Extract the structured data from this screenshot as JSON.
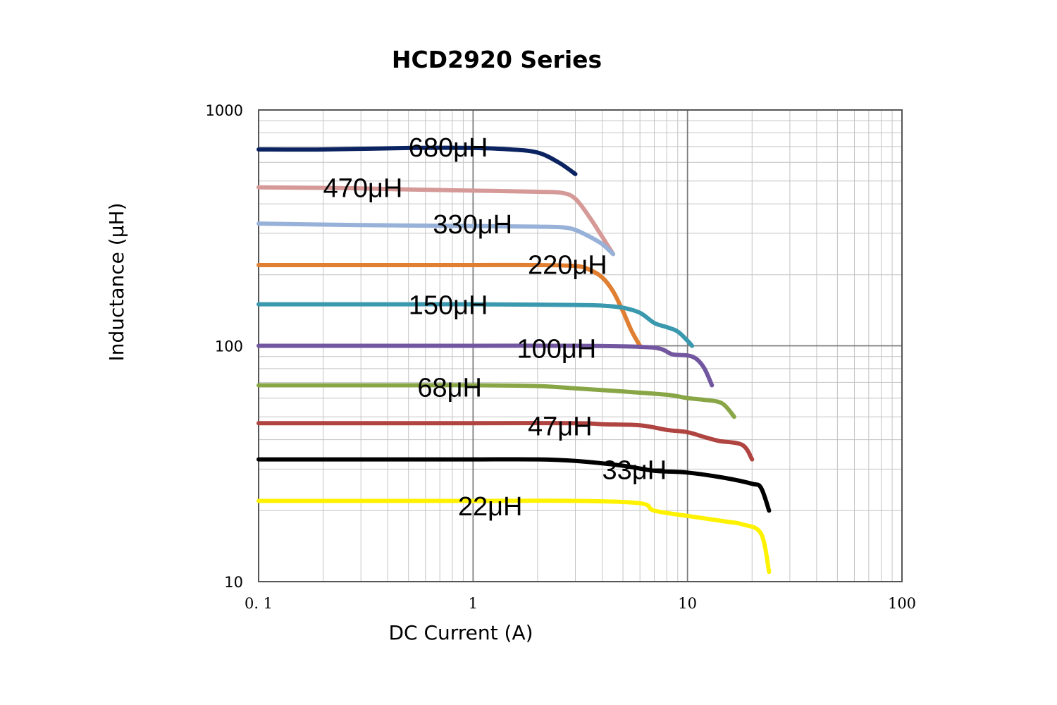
{
  "chart_data": {
    "type": "line",
    "title": "HCD2920 Series",
    "xlabel": "DC Current (A)",
    "ylabel": "Inductance (μH)",
    "xscale": "log",
    "yscale": "log",
    "xlim": [
      0.1,
      100
    ],
    "ylim": [
      10,
      1000
    ],
    "xticks": [
      {
        "value": 0.1,
        "label": "0. 1"
      },
      {
        "value": 1,
        "label": "1"
      },
      {
        "value": 10,
        "label": "10"
      },
      {
        "value": 100,
        "label": "100"
      }
    ],
    "yticks": [
      {
        "value": 10,
        "label": "10"
      },
      {
        "value": 100,
        "label": "100"
      },
      {
        "value": 1000,
        "label": "1000"
      }
    ],
    "grid": true,
    "series": [
      {
        "name": "680μH",
        "label": "680μH",
        "color": "#0b2461",
        "label_at": [
          0.5,
          700
        ],
        "points": [
          [
            0.1,
            680
          ],
          [
            0.2,
            680
          ],
          [
            0.5,
            690
          ],
          [
            1.0,
            690
          ],
          [
            1.5,
            680
          ],
          [
            2.0,
            660
          ],
          [
            2.5,
            600
          ],
          [
            3.0,
            535
          ]
        ]
      },
      {
        "name": "470μH",
        "label": "470μH",
        "color": "#d59a98",
        "label_at": [
          0.2,
          470
        ],
        "points": [
          [
            0.1,
            470
          ],
          [
            0.3,
            465
          ],
          [
            0.5,
            460
          ],
          [
            1.0,
            455
          ],
          [
            2.0,
            450
          ],
          [
            2.6,
            445
          ],
          [
            3.0,
            420
          ],
          [
            3.5,
            350
          ],
          [
            4.0,
            290
          ],
          [
            4.5,
            245
          ]
        ]
      },
      {
        "name": "330μH",
        "label": "330μH",
        "color": "#97b1d8",
        "label_at": [
          0.65,
          330
        ],
        "points": [
          [
            0.1,
            330
          ],
          [
            0.3,
            325
          ],
          [
            1.0,
            322
          ],
          [
            2.0,
            320
          ],
          [
            2.6,
            318
          ],
          [
            3.0,
            310
          ],
          [
            3.5,
            290
          ],
          [
            4.0,
            270
          ],
          [
            4.5,
            245
          ]
        ]
      },
      {
        "name": "220μH",
        "label": "220μH",
        "color": "#e07f31",
        "label_at": [
          1.8,
          222
        ],
        "points": [
          [
            0.1,
            220
          ],
          [
            0.5,
            220
          ],
          [
            1.0,
            220
          ],
          [
            2.0,
            220
          ],
          [
            3.0,
            218
          ],
          [
            3.5,
            210
          ],
          [
            4.0,
            195
          ],
          [
            4.5,
            170
          ],
          [
            5.0,
            140
          ],
          [
            5.5,
            115
          ],
          [
            6.0,
            100
          ]
        ]
      },
      {
        "name": "150μH",
        "label": "150μH",
        "color": "#3a99ae",
        "label_at": [
          0.5,
          150
        ],
        "points": [
          [
            0.1,
            150
          ],
          [
            0.5,
            150
          ],
          [
            1.0,
            150
          ],
          [
            3.0,
            149
          ],
          [
            4.0,
            148
          ],
          [
            5.0,
            145
          ],
          [
            6.0,
            138
          ],
          [
            7.0,
            125
          ],
          [
            8.0,
            120
          ],
          [
            9.0,
            115
          ],
          [
            10.0,
            105
          ],
          [
            10.5,
            100
          ]
        ]
      },
      {
        "name": "100μH",
        "label": "100μH",
        "color": "#7257a0",
        "label_at": [
          1.6,
          98
        ],
        "points": [
          [
            0.1,
            100
          ],
          [
            0.5,
            100
          ],
          [
            1.0,
            100
          ],
          [
            3.0,
            100
          ],
          [
            6.0,
            99
          ],
          [
            7.5,
            97
          ],
          [
            8.5,
            92
          ],
          [
            10.0,
            91
          ],
          [
            11.0,
            88
          ],
          [
            12.0,
            80
          ],
          [
            13.0,
            68
          ]
        ]
      },
      {
        "name": "68μH",
        "label": "68μH",
        "color": "#89a646",
        "label_at": [
          0.55,
          67
        ],
        "points": [
          [
            0.1,
            68
          ],
          [
            0.5,
            68
          ],
          [
            1.0,
            68
          ],
          [
            2.0,
            67.5
          ],
          [
            3.0,
            66
          ],
          [
            5.0,
            64
          ],
          [
            8.0,
            62
          ],
          [
            10.0,
            60
          ],
          [
            12.0,
            59
          ],
          [
            14.5,
            57
          ],
          [
            16.5,
            50
          ]
        ]
      },
      {
        "name": "47μH",
        "label": "47μH",
        "color": "#b04440",
        "label_at": [
          1.8,
          46
        ],
        "points": [
          [
            0.1,
            47
          ],
          [
            0.5,
            47
          ],
          [
            1.0,
            47
          ],
          [
            3.0,
            47
          ],
          [
            4.0,
            46.5
          ],
          [
            6.0,
            46
          ],
          [
            8.0,
            44
          ],
          [
            10.0,
            43
          ],
          [
            12.0,
            41
          ],
          [
            14.0,
            39.5
          ],
          [
            18.0,
            38
          ],
          [
            20.0,
            33
          ]
        ]
      },
      {
        "name": "33μH",
        "label": "33μH",
        "color": "#000000",
        "label_at": [
          4.0,
          30
        ],
        "points": [
          [
            0.1,
            33
          ],
          [
            0.5,
            33
          ],
          [
            1.0,
            33
          ],
          [
            2.0,
            33
          ],
          [
            3.0,
            32.5
          ],
          [
            5.0,
            31
          ],
          [
            7.0,
            29.5
          ],
          [
            10.0,
            29
          ],
          [
            15.0,
            27.5
          ],
          [
            20.0,
            26
          ],
          [
            22.0,
            25
          ],
          [
            24.0,
            20
          ]
        ]
      },
      {
        "name": "22μH",
        "label": "22μH",
        "color": "#fef200",
        "label_at": [
          0.85,
          21
        ],
        "points": [
          [
            0.1,
            22
          ],
          [
            0.5,
            22
          ],
          [
            1.0,
            22
          ],
          [
            3.0,
            22
          ],
          [
            6.0,
            21.5
          ],
          [
            7.0,
            20
          ],
          [
            10.0,
            19
          ],
          [
            15.0,
            18
          ],
          [
            18.0,
            17.5
          ],
          [
            22.0,
            16
          ],
          [
            24.0,
            11
          ]
        ]
      }
    ]
  }
}
